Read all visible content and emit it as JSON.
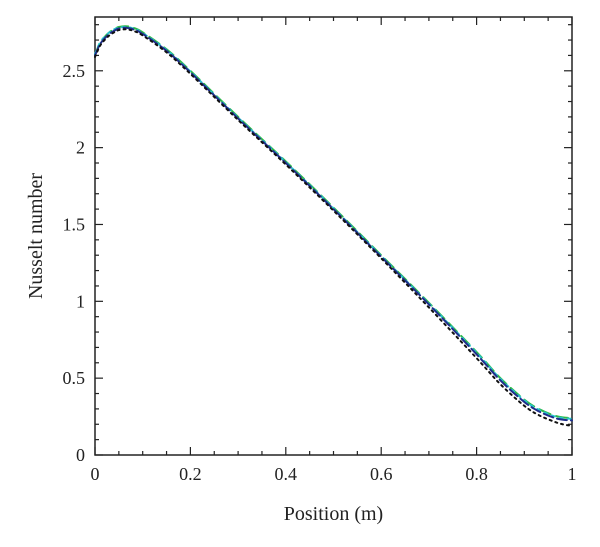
{
  "chart_data": {
    "type": "line",
    "title": "",
    "xlabel": "Position (m)",
    "ylabel": "Nusselt number",
    "xlim": [
      0,
      1
    ],
    "ylim": [
      0,
      2.85
    ],
    "grid": false,
    "legend": "none",
    "x_ticks": [
      0,
      0.2,
      0.4,
      0.6,
      0.8,
      1
    ],
    "x_tick_labels": [
      "0",
      "0.2",
      "0.4",
      "0.6",
      "0.8",
      "1"
    ],
    "y_ticks": [
      0,
      0.5,
      1,
      1.5,
      2,
      2.5
    ],
    "y_tick_labels": [
      "0",
      "0.5",
      "1",
      "1.5",
      "2",
      "2.5"
    ],
    "series": [
      {
        "color": "#2eb84a",
        "dash": "12,6",
        "x": [
          0,
          0.01,
          0.02,
          0.03,
          0.04,
          0.05,
          0.065,
          0.08,
          0.1,
          0.15,
          0.2,
          0.3,
          0.4,
          0.5,
          0.6,
          0.7,
          0.8,
          0.85,
          0.9,
          0.93,
          0.96,
          0.98,
          1.0
        ],
        "y": [
          2.6,
          2.68,
          2.72,
          2.75,
          2.77,
          2.785,
          2.79,
          2.78,
          2.75,
          2.64,
          2.5,
          2.2,
          1.91,
          1.61,
          1.3,
          0.99,
          0.67,
          0.5,
          0.36,
          0.3,
          0.26,
          0.245,
          0.24
        ]
      },
      {
        "color": "#27c4cc",
        "dash": "3,5",
        "x": [
          0,
          0.01,
          0.02,
          0.03,
          0.04,
          0.05,
          0.065,
          0.08,
          0.1,
          0.15,
          0.2,
          0.3,
          0.4,
          0.5,
          0.6,
          0.7,
          0.8,
          0.85,
          0.9,
          0.93,
          0.96,
          0.98,
          1.0
        ],
        "y": [
          2.61,
          2.68,
          2.72,
          2.75,
          2.77,
          2.78,
          2.785,
          2.775,
          2.745,
          2.635,
          2.495,
          2.195,
          1.905,
          1.605,
          1.295,
          0.985,
          0.665,
          0.495,
          0.355,
          0.295,
          0.255,
          0.24,
          0.235
        ]
      },
      {
        "color": "#1f2e8c",
        "dash": "10,4",
        "x": [
          0,
          0.01,
          0.02,
          0.03,
          0.04,
          0.05,
          0.065,
          0.08,
          0.1,
          0.15,
          0.2,
          0.3,
          0.4,
          0.5,
          0.6,
          0.7,
          0.8,
          0.85,
          0.9,
          0.93,
          0.96,
          0.98,
          1.0
        ],
        "y": [
          2.6,
          2.67,
          2.71,
          2.74,
          2.76,
          2.775,
          2.78,
          2.77,
          2.74,
          2.63,
          2.49,
          2.19,
          1.9,
          1.6,
          1.29,
          0.98,
          0.655,
          0.485,
          0.345,
          0.285,
          0.245,
          0.23,
          0.225
        ]
      },
      {
        "color": "#111111",
        "dash": "2,4",
        "x": [
          0,
          0.01,
          0.02,
          0.03,
          0.04,
          0.05,
          0.065,
          0.08,
          0.1,
          0.15,
          0.2,
          0.3,
          0.4,
          0.5,
          0.6,
          0.7,
          0.8,
          0.85,
          0.9,
          0.93,
          0.96,
          0.98,
          1.0
        ],
        "y": [
          2.59,
          2.66,
          2.7,
          2.73,
          2.75,
          2.765,
          2.77,
          2.76,
          2.73,
          2.62,
          2.48,
          2.18,
          1.89,
          1.59,
          1.28,
          0.96,
          0.63,
          0.46,
          0.32,
          0.26,
          0.22,
          0.2,
          0.19
        ]
      }
    ]
  }
}
